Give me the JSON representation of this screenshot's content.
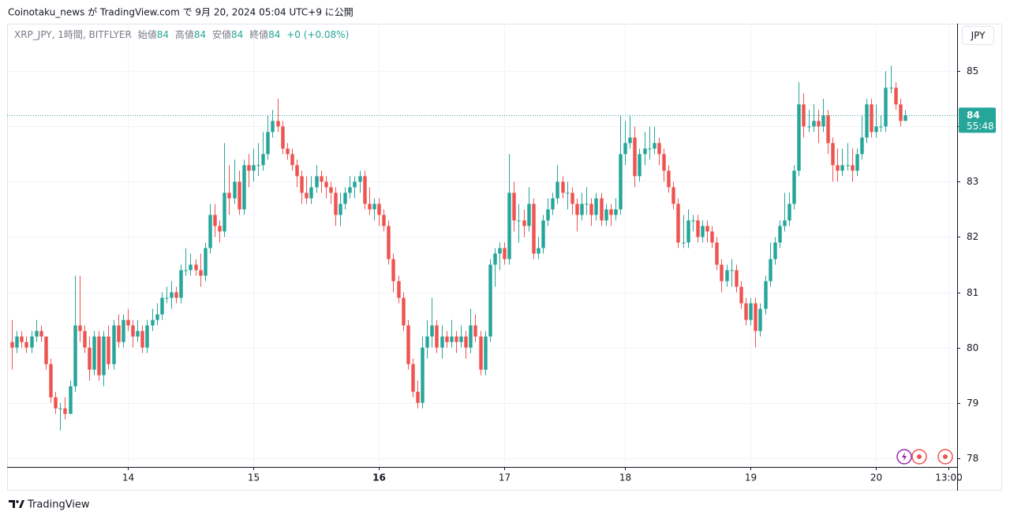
{
  "header": {
    "published": "Coinotaku_news が TradingView.com で 9月 20, 2024 05:04 UTC+9 に公開"
  },
  "legend": {
    "symbol": "XRP_JPY, 1時間, BITFLYER",
    "open_label": "始値",
    "open": "84",
    "high_label": "高値",
    "high": "84",
    "low_label": "安値",
    "low": "84",
    "close_label": "終値",
    "close": "84",
    "change": "+0 (+0.08%)"
  },
  "footer": {
    "brand": "TradingView"
  },
  "chart_data": {
    "type": "candlestick",
    "currency": "JPY",
    "up_color": "#26a69a",
    "down_color": "#ef5350",
    "grid": true,
    "ohlc": [
      [
        80.1,
        80.5,
        79.6,
        80.0
      ],
      [
        80.0,
        80.3,
        79.9,
        80.2
      ],
      [
        80.2,
        80.3,
        80.0,
        80.1
      ],
      [
        80.1,
        80.2,
        79.9,
        80.0
      ],
      [
        80.0,
        80.3,
        79.9,
        80.2
      ],
      [
        80.2,
        80.5,
        80.1,
        80.3
      ],
      [
        80.3,
        80.4,
        80.1,
        80.2
      ],
      [
        80.2,
        80.2,
        79.6,
        79.7
      ],
      [
        79.7,
        79.8,
        79.0,
        79.1
      ],
      [
        79.1,
        79.2,
        78.8,
        78.9
      ],
      [
        78.9,
        79.0,
        78.5,
        78.9
      ],
      [
        78.9,
        79.1,
        78.7,
        78.8
      ],
      [
        78.8,
        79.4,
        78.8,
        79.3
      ],
      [
        79.3,
        81.3,
        79.2,
        80.4
      ],
      [
        80.4,
        81.3,
        80.1,
        80.3
      ],
      [
        80.3,
        80.4,
        79.9,
        80.0
      ],
      [
        80.0,
        80.2,
        79.4,
        79.6
      ],
      [
        79.6,
        80.3,
        79.5,
        80.2
      ],
      [
        80.2,
        80.3,
        79.4,
        79.5
      ],
      [
        79.5,
        80.3,
        79.3,
        80.2
      ],
      [
        80.2,
        80.4,
        79.6,
        79.7
      ],
      [
        79.7,
        80.5,
        79.6,
        80.4
      ],
      [
        80.4,
        80.6,
        80.0,
        80.1
      ],
      [
        80.1,
        80.6,
        80.0,
        80.5
      ],
      [
        80.5,
        80.7,
        80.3,
        80.4
      ],
      [
        80.4,
        80.5,
        80.0,
        80.2
      ],
      [
        80.2,
        80.5,
        80.1,
        80.3
      ],
      [
        80.3,
        80.4,
        79.9,
        80.0
      ],
      [
        80.0,
        80.5,
        79.9,
        80.4
      ],
      [
        80.4,
        80.7,
        80.3,
        80.5
      ],
      [
        80.5,
        80.8,
        80.4,
        80.6
      ],
      [
        80.6,
        81.0,
        80.5,
        80.9
      ],
      [
        80.9,
        81.1,
        80.8,
        80.9
      ],
      [
        80.9,
        81.2,
        80.7,
        81.0
      ],
      [
        81.0,
        81.1,
        80.8,
        80.9
      ],
      [
        80.9,
        81.5,
        80.8,
        81.4
      ],
      [
        81.4,
        81.8,
        81.3,
        81.4
      ],
      [
        81.4,
        81.7,
        81.3,
        81.5
      ],
      [
        81.5,
        81.6,
        81.3,
        81.4
      ],
      [
        81.4,
        81.7,
        81.1,
        81.3
      ],
      [
        81.3,
        81.9,
        81.2,
        81.8
      ],
      [
        81.8,
        82.6,
        81.7,
        82.4
      ],
      [
        82.4,
        82.6,
        82.0,
        82.2
      ],
      [
        82.2,
        82.3,
        81.9,
        82.1
      ],
      [
        82.1,
        83.7,
        82.0,
        82.8
      ],
      [
        82.8,
        83.3,
        82.4,
        82.7
      ],
      [
        82.7,
        83.4,
        82.6,
        83.0
      ],
      [
        83.0,
        83.2,
        82.4,
        82.5
      ],
      [
        82.5,
        83.4,
        82.4,
        83.3
      ],
      [
        83.3,
        83.5,
        82.9,
        83.2
      ],
      [
        83.2,
        83.6,
        83.0,
        83.3
      ],
      [
        83.3,
        83.7,
        83.1,
        83.3
      ],
      [
        83.3,
        83.9,
        83.2,
        83.5
      ],
      [
        83.5,
        84.2,
        83.4,
        83.9
      ],
      [
        83.9,
        84.3,
        83.8,
        84.1
      ],
      [
        84.1,
        84.5,
        83.9,
        84.0
      ],
      [
        84.0,
        84.1,
        83.5,
        83.6
      ],
      [
        83.6,
        83.7,
        83.4,
        83.5
      ],
      [
        83.5,
        83.6,
        83.2,
        83.3
      ],
      [
        83.3,
        83.4,
        82.9,
        83.1
      ],
      [
        83.1,
        83.2,
        82.6,
        82.8
      ],
      [
        82.8,
        83.1,
        82.6,
        82.7
      ],
      [
        82.7,
        83.1,
        82.6,
        82.9
      ],
      [
        82.9,
        83.3,
        82.8,
        83.1
      ],
      [
        83.1,
        83.2,
        82.8,
        83.0
      ],
      [
        83.0,
        83.1,
        82.7,
        82.9
      ],
      [
        82.9,
        83.0,
        82.6,
        82.8
      ],
      [
        82.8,
        82.9,
        82.2,
        82.4
      ],
      [
        82.4,
        82.8,
        82.2,
        82.6
      ],
      [
        82.6,
        82.9,
        82.5,
        82.8
      ],
      [
        82.8,
        83.1,
        82.7,
        82.9
      ],
      [
        82.9,
        83.1,
        82.7,
        83.0
      ],
      [
        83.0,
        83.2,
        82.8,
        83.1
      ],
      [
        83.1,
        83.2,
        82.5,
        82.6
      ],
      [
        82.6,
        82.9,
        82.4,
        82.5
      ],
      [
        82.5,
        82.7,
        82.3,
        82.6
      ],
      [
        82.6,
        82.7,
        82.2,
        82.4
      ],
      [
        82.4,
        82.5,
        82.1,
        82.2
      ],
      [
        82.2,
        82.3,
        81.5,
        81.6
      ],
      [
        81.6,
        81.7,
        81.0,
        81.2
      ],
      [
        81.2,
        81.3,
        80.8,
        80.9
      ],
      [
        80.9,
        81.0,
        80.3,
        80.4
      ],
      [
        80.4,
        80.5,
        79.6,
        79.7
      ],
      [
        79.7,
        79.8,
        79.1,
        79.2
      ],
      [
        79.2,
        79.4,
        78.9,
        79.0
      ],
      [
        79.0,
        80.2,
        78.9,
        80.0
      ],
      [
        80.0,
        80.5,
        79.8,
        80.2
      ],
      [
        80.2,
        80.9,
        80.0,
        80.4
      ],
      [
        80.4,
        80.5,
        79.9,
        80.0
      ],
      [
        80.0,
        80.4,
        79.8,
        80.2
      ],
      [
        80.2,
        80.3,
        80.0,
        80.1
      ],
      [
        80.1,
        80.5,
        80.0,
        80.2
      ],
      [
        80.2,
        80.3,
        79.9,
        80.1
      ],
      [
        80.1,
        80.4,
        80.0,
        80.2
      ],
      [
        80.2,
        80.3,
        79.8,
        80.0
      ],
      [
        80.0,
        80.7,
        79.9,
        80.4
      ],
      [
        80.4,
        80.6,
        80.1,
        80.2
      ],
      [
        80.2,
        80.3,
        79.5,
        79.6
      ],
      [
        79.6,
        80.3,
        79.5,
        80.2
      ],
      [
        80.2,
        81.6,
        80.1,
        81.5
      ],
      [
        81.5,
        81.8,
        81.1,
        81.7
      ],
      [
        81.7,
        81.9,
        81.4,
        81.8
      ],
      [
        81.8,
        81.9,
        81.5,
        81.6
      ],
      [
        81.6,
        83.5,
        81.5,
        82.8
      ],
      [
        82.8,
        83.0,
        82.1,
        82.3
      ],
      [
        82.3,
        82.6,
        81.9,
        82.3
      ],
      [
        82.3,
        82.5,
        82.0,
        82.2
      ],
      [
        82.2,
        82.9,
        82.1,
        82.6
      ],
      [
        82.6,
        82.7,
        81.6,
        81.7
      ],
      [
        81.7,
        82.0,
        81.6,
        81.8
      ],
      [
        81.8,
        82.4,
        81.7,
        82.3
      ],
      [
        82.3,
        82.7,
        82.2,
        82.5
      ],
      [
        82.5,
        82.8,
        82.4,
        82.7
      ],
      [
        82.7,
        83.3,
        82.6,
        83.0
      ],
      [
        83.0,
        83.1,
        82.7,
        82.8
      ],
      [
        82.8,
        83.0,
        82.5,
        82.8
      ],
      [
        82.8,
        82.9,
        82.4,
        82.6
      ],
      [
        82.6,
        82.7,
        82.1,
        82.4
      ],
      [
        82.4,
        82.8,
        82.3,
        82.6
      ],
      [
        82.6,
        82.9,
        82.4,
        82.6
      ],
      [
        82.6,
        82.7,
        82.2,
        82.4
      ],
      [
        82.4,
        82.8,
        82.3,
        82.7
      ],
      [
        82.7,
        82.8,
        82.2,
        82.3
      ],
      [
        82.3,
        82.6,
        82.2,
        82.5
      ],
      [
        82.5,
        82.6,
        82.2,
        82.4
      ],
      [
        82.4,
        82.7,
        82.3,
        82.5
      ],
      [
        82.5,
        84.2,
        82.4,
        83.5
      ],
      [
        83.5,
        84.1,
        83.3,
        83.7
      ],
      [
        83.7,
        84.2,
        83.6,
        83.8
      ],
      [
        83.8,
        84.0,
        82.9,
        83.1
      ],
      [
        83.1,
        83.6,
        83.0,
        83.5
      ],
      [
        83.5,
        83.9,
        83.3,
        83.6
      ],
      [
        83.6,
        84.0,
        83.4,
        83.6
      ],
      [
        83.6,
        84.0,
        83.5,
        83.7
      ],
      [
        83.7,
        83.8,
        83.3,
        83.5
      ],
      [
        83.5,
        83.6,
        83.0,
        83.2
      ],
      [
        83.2,
        83.3,
        82.8,
        82.9
      ],
      [
        82.9,
        83.0,
        82.5,
        82.6
      ],
      [
        82.6,
        82.7,
        81.8,
        81.9
      ],
      [
        81.9,
        82.4,
        81.8,
        81.9
      ],
      [
        81.9,
        82.5,
        81.8,
        82.3
      ],
      [
        82.3,
        82.4,
        82.1,
        82.3
      ],
      [
        82.3,
        82.4,
        81.9,
        82.0
      ],
      [
        82.0,
        82.3,
        81.9,
        82.2
      ],
      [
        82.2,
        82.3,
        81.9,
        82.1
      ],
      [
        82.1,
        82.2,
        81.8,
        81.9
      ],
      [
        81.9,
        82.0,
        81.4,
        81.5
      ],
      [
        81.5,
        81.6,
        81.0,
        81.2
      ],
      [
        81.2,
        81.5,
        81.1,
        81.4
      ],
      [
        81.4,
        81.6,
        81.1,
        81.4
      ],
      [
        81.4,
        81.5,
        81.0,
        81.1
      ],
      [
        81.1,
        81.2,
        80.7,
        80.8
      ],
      [
        80.8,
        80.9,
        80.4,
        80.5
      ],
      [
        80.5,
        80.9,
        80.4,
        80.8
      ],
      [
        80.8,
        80.9,
        80.0,
        80.3
      ],
      [
        80.3,
        80.8,
        80.2,
        80.7
      ],
      [
        80.7,
        81.3,
        80.6,
        81.2
      ],
      [
        81.2,
        81.9,
        81.1,
        81.6
      ],
      [
        81.6,
        82.0,
        81.5,
        81.9
      ],
      [
        81.9,
        82.3,
        81.8,
        82.2
      ],
      [
        82.2,
        82.8,
        82.1,
        82.3
      ],
      [
        82.3,
        82.8,
        82.2,
        82.6
      ],
      [
        82.6,
        83.3,
        82.5,
        83.2
      ],
      [
        83.2,
        84.8,
        83.1,
        84.4
      ],
      [
        84.4,
        84.6,
        83.8,
        84.0
      ],
      [
        84.0,
        84.3,
        83.9,
        84.0
      ],
      [
        84.0,
        84.4,
        83.9,
        84.1
      ],
      [
        84.1,
        84.3,
        83.7,
        84.0
      ],
      [
        84.0,
        84.5,
        83.9,
        84.2
      ],
      [
        84.2,
        84.3,
        83.5,
        83.7
      ],
      [
        83.7,
        83.8,
        83.0,
        83.3
      ],
      [
        83.3,
        83.6,
        83.0,
        83.2
      ],
      [
        83.2,
        83.6,
        83.1,
        83.3
      ],
      [
        83.3,
        83.7,
        83.2,
        83.3
      ],
      [
        83.3,
        83.6,
        83.0,
        83.2
      ],
      [
        83.2,
        83.6,
        83.1,
        83.5
      ],
      [
        83.5,
        84.2,
        83.4,
        83.8
      ],
      [
        83.8,
        84.5,
        83.7,
        84.4
      ],
      [
        84.4,
        84.5,
        83.8,
        83.9
      ],
      [
        83.9,
        84.4,
        83.8,
        84.0
      ],
      [
        84.0,
        84.2,
        83.9,
        84.0
      ],
      [
        84.0,
        85.0,
        83.9,
        84.7
      ],
      [
        84.7,
        85.1,
        84.6,
        84.7
      ],
      [
        84.7,
        84.8,
        84.3,
        84.4
      ],
      [
        84.4,
        84.5,
        84.0,
        84.1
      ],
      [
        84.1,
        84.3,
        84.1,
        84.2
      ]
    ],
    "xlim": [
      -1,
      195.8
    ],
    "xticks": [
      {
        "value": 24,
        "label": "14"
      },
      {
        "value": 50,
        "label": "15"
      },
      {
        "value": 76,
        "label": "16"
      },
      {
        "value": 102,
        "label": "17"
      },
      {
        "value": 127,
        "label": "18"
      },
      {
        "value": 153,
        "label": "19"
      },
      {
        "value": 179,
        "label": "20"
      },
      {
        "value": 194,
        "label": "13:00"
      }
    ],
    "ylim": [
      77.84,
      85.86
    ],
    "yticks": [
      78,
      79,
      80,
      81,
      82,
      83,
      84,
      85
    ],
    "last_price": {
      "value": 84.2,
      "label": "84"
    },
    "countdown": "55:48"
  }
}
